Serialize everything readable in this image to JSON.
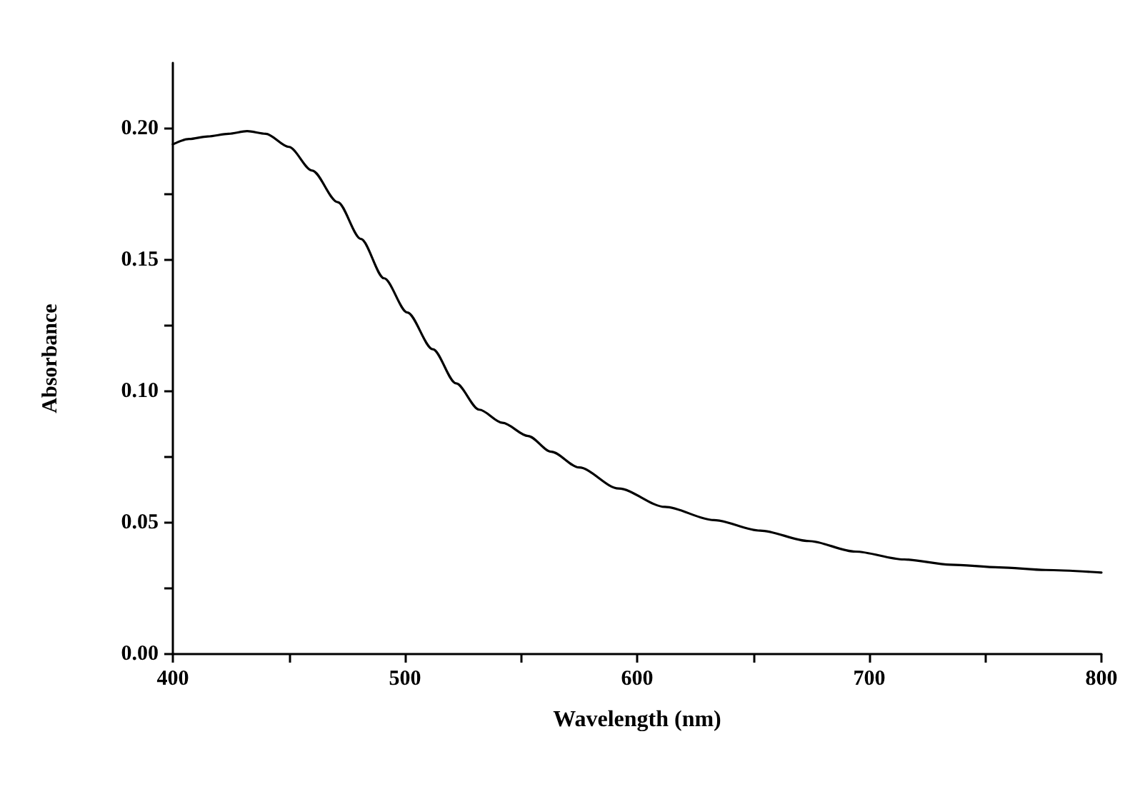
{
  "chart_data": {
    "type": "line",
    "xlabel": "Wavelength (nm)",
    "ylabel": "Absorbance",
    "xlim": [
      400,
      800
    ],
    "ylim": [
      0,
      0.225
    ],
    "xticks": [
      400,
      {
        "value": 450,
        "label": null
      },
      500,
      {
        "value": 550,
        "label": null
      },
      600,
      {
        "value": 650,
        "label": null
      },
      700,
      {
        "value": 750,
        "label": null
      },
      800
    ],
    "yticks": [
      {
        "value": 0,
        "label": "0.00"
      },
      {
        "value": 0.025,
        "label": null
      },
      0.05,
      {
        "value": 0.075,
        "label": null
      },
      {
        "value": 0.1,
        "label": "0.10"
      },
      {
        "value": 0.125,
        "label": null
      },
      0.15,
      {
        "value": 0.175,
        "label": null
      },
      {
        "value": 0.2,
        "label": "0.20"
      }
    ],
    "grid": false,
    "marker": "none",
    "line_style": "solid",
    "series": [
      {
        "color": "#000000",
        "x": [
          400,
          407,
          415,
          424,
          432,
          440,
          450,
          460,
          471,
          481,
          491,
          501,
          512,
          522,
          532,
          542,
          553,
          563,
          575,
          592,
          612,
          633,
          653,
          674,
          694,
          715,
          735,
          756,
          776,
          800
        ],
        "values": [
          0.194,
          0.196,
          0.197,
          0.198,
          0.199,
          0.198,
          0.193,
          0.184,
          0.172,
          0.158,
          0.143,
          0.13,
          0.116,
          0.103,
          0.093,
          0.088,
          0.083,
          0.077,
          0.071,
          0.063,
          0.056,
          0.051,
          0.047,
          0.043,
          0.039,
          0.036,
          0.034,
          0.033,
          0.032,
          0.031
        ]
      }
    ]
  }
}
